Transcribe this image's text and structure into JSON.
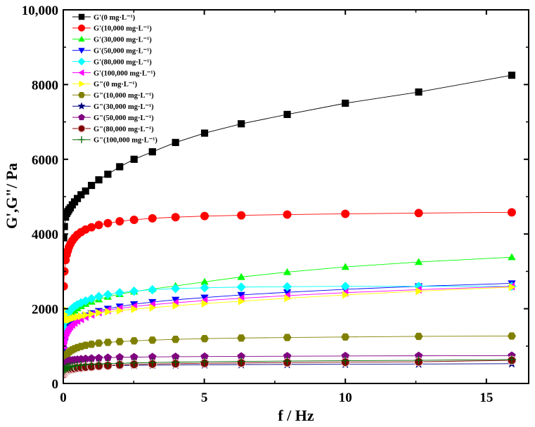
{
  "chart_data": {
    "type": "scatter",
    "xlabel": "f / Hz",
    "ylabel": "G',G\"/ Pa",
    "xlim": [
      0,
      16.5
    ],
    "ylim": [
      0,
      10000
    ],
    "xticks": [
      0,
      5,
      10,
      15
    ],
    "yticks": [
      0,
      2000,
      4000,
      6000,
      8000,
      10000
    ],
    "ytick_labels": [
      "0",
      "2000",
      "4000",
      "6000",
      "8000",
      "10,000"
    ],
    "grid": false,
    "legend_position": "top-left",
    "x": [
      0.016,
      0.04,
      0.08,
      0.12,
      0.16,
      0.2,
      0.25,
      0.32,
      0.4,
      0.5,
      0.63,
      0.79,
      1.0,
      1.26,
      1.58,
      2.0,
      2.51,
      3.16,
      3.98,
      5.01,
      6.31,
      7.94,
      10.0,
      12.6,
      15.9
    ],
    "series": [
      {
        "name": "G'(0 mg·L⁻¹)",
        "color": "#000000",
        "marker": "square",
        "values": [
          3900,
          4200,
          4450,
          4550,
          4600,
          4650,
          4700,
          4780,
          4860,
          4950,
          5050,
          5150,
          5300,
          5450,
          5600,
          5800,
          6000,
          6200,
          6450,
          6700,
          6950,
          7200,
          7500,
          7800,
          8250
        ]
      },
      {
        "name": "G'(10,000 mg·L⁻¹)",
        "color": "#ff0000",
        "marker": "circle",
        "values": [
          2600,
          3000,
          3300,
          3450,
          3550,
          3650,
          3730,
          3820,
          3900,
          3980,
          4050,
          4120,
          4180,
          4240,
          4290,
          4340,
          4380,
          4420,
          4450,
          4480,
          4500,
          4520,
          4540,
          4560,
          4580
        ]
      },
      {
        "name": "G'(30,000 mg·L⁻¹)",
        "color": "#00ff00",
        "marker": "triangle-up",
        "values": [
          1200,
          1400,
          1550,
          1650,
          1720,
          1780,
          1830,
          1890,
          1950,
          2010,
          2070,
          2130,
          2190,
          2250,
          2320,
          2390,
          2460,
          2530,
          2610,
          2720,
          2850,
          2980,
          3120,
          3250,
          3380
        ]
      },
      {
        "name": "G'(50,000 mg·L⁻¹)",
        "color": "#0000ff",
        "marker": "triangle-down",
        "values": [
          900,
          1100,
          1250,
          1350,
          1420,
          1480,
          1530,
          1590,
          1640,
          1700,
          1760,
          1820,
          1880,
          1940,
          2000,
          2060,
          2120,
          2180,
          2240,
          2300,
          2370,
          2440,
          2520,
          2600,
          2680
        ]
      },
      {
        "name": "G'(80,000 mg·L⁻¹)",
        "color": "#00ffff",
        "marker": "diamond",
        "values": [
          1500,
          1650,
          1750,
          1820,
          1870,
          1920,
          1960,
          2010,
          2060,
          2110,
          2160,
          2210,
          2270,
          2330,
          2380,
          2430,
          2470,
          2510,
          2540,
          2560,
          2580,
          2590,
          2600,
          2600,
          2600
        ]
      },
      {
        "name": "G'(100,000 mg·L⁻¹)",
        "color": "#ff00ff",
        "marker": "triangle-left",
        "values": [
          1000,
          1150,
          1280,
          1360,
          1420,
          1470,
          1520,
          1570,
          1620,
          1670,
          1720,
          1780,
          1840,
          1900,
          1960,
          2010,
          2060,
          2110,
          2160,
          2220,
          2280,
          2350,
          2430,
          2510,
          2600
        ]
      },
      {
        "name": "G\"(0 mg·L⁻¹)",
        "color": "#ffff00",
        "marker": "triangle-right",
        "values": [
          2000,
          1850,
          1750,
          1720,
          1710,
          1710,
          1720,
          1740,
          1760,
          1780,
          1800,
          1830,
          1860,
          1890,
          1920,
          1950,
          1990,
          2030,
          2080,
          2140,
          2200,
          2280,
          2370,
          2470,
          2580
        ]
      },
      {
        "name": "G\"(10,000 mg·L⁻¹)",
        "color": "#808000",
        "marker": "hexagon",
        "values": [
          600,
          680,
          740,
          780,
          810,
          840,
          870,
          900,
          930,
          960,
          990,
          1020,
          1050,
          1080,
          1100,
          1120,
          1140,
          1160,
          1180,
          1200,
          1215,
          1230,
          1245,
          1260,
          1270
        ]
      },
      {
        "name": "G\"(30,000 mg·L⁻¹)",
        "color": "#000080",
        "marker": "star",
        "values": [
          300,
          330,
          350,
          370,
          380,
          390,
          400,
          410,
          420,
          430,
          440,
          450,
          460,
          470,
          475,
          480,
          485,
          490,
          495,
          500,
          505,
          510,
          515,
          520,
          530
        ]
      },
      {
        "name": "G\"(50,000 mg·L⁻¹)",
        "color": "#800080",
        "marker": "pentagon",
        "values": [
          450,
          500,
          540,
          570,
          590,
          600,
          610,
          620,
          630,
          640,
          650,
          660,
          670,
          680,
          690,
          700,
          705,
          710,
          715,
          720,
          725,
          730,
          735,
          740,
          745
        ]
      },
      {
        "name": "G\"(80,000 mg·L⁻¹)",
        "color": "#800000",
        "marker": "sphere",
        "values": [
          250,
          290,
          320,
          340,
          360,
          370,
          380,
          390,
          400,
          420,
          430,
          440,
          450,
          470,
          480,
          500,
          510,
          520,
          530,
          540,
          550,
          560,
          570,
          580,
          620
        ]
      },
      {
        "name": "G\"(100,000 mg·L⁻¹)",
        "color": "#006400",
        "marker": "plus",
        "values": [
          350,
          380,
          400,
          420,
          430,
          440,
          450,
          460,
          470,
          480,
          490,
          500,
          510,
          520,
          530,
          540,
          550,
          560,
          570,
          580,
          590,
          600,
          610,
          620,
          640
        ]
      }
    ]
  }
}
